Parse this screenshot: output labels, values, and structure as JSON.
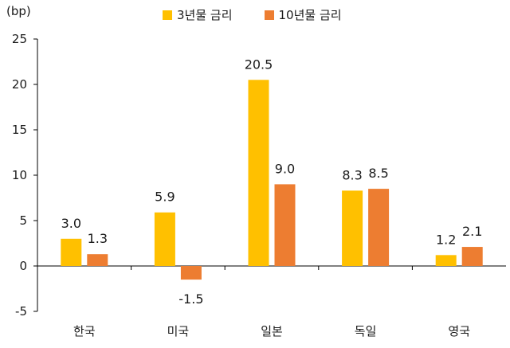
{
  "chart_data": {
    "type": "bar",
    "unit_label": "(bp)",
    "categories": [
      "한국",
      "미국",
      "일본",
      "독일",
      "영국"
    ],
    "series": [
      {
        "name": "3년물 금리",
        "color": "#FFC000",
        "values": [
          3.0,
          5.9,
          20.5,
          8.3,
          1.2
        ]
      },
      {
        "name": "10년물 금리",
        "color": "#ED7D31",
        "values": [
          1.3,
          -1.5,
          9.0,
          8.5,
          2.1
        ]
      }
    ],
    "data_labels": [
      [
        "3.0",
        "5.9",
        "20.5",
        "8.3",
        "1.2"
      ],
      [
        "1.3",
        "-1.5",
        "9.0",
        "8.5",
        "2.1"
      ]
    ],
    "ylim": [
      -5,
      25
    ],
    "yticks": [
      -5,
      0,
      5,
      10,
      15,
      20,
      25
    ],
    "grid": false,
    "legend_position": "top-center"
  }
}
